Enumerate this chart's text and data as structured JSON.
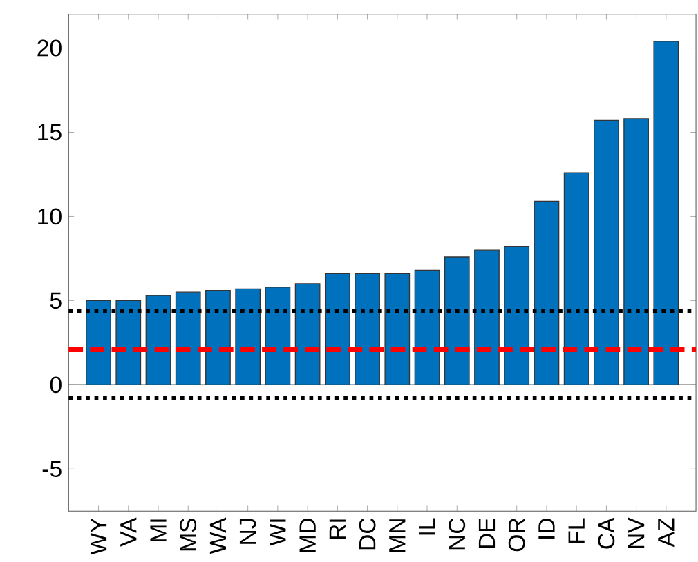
{
  "chart_data": {
    "type": "bar",
    "categories": [
      "WY",
      "VA",
      "MI",
      "MS",
      "WA",
      "NJ",
      "WI",
      "MD",
      "RI",
      "DC",
      "MN",
      "IL",
      "NC",
      "DE",
      "OR",
      "ID",
      "FL",
      "CA",
      "NV",
      "AZ"
    ],
    "values": [
      5.0,
      5.0,
      5.3,
      5.5,
      5.6,
      5.7,
      5.8,
      6.0,
      6.6,
      6.6,
      6.6,
      6.8,
      7.6,
      8.0,
      8.2,
      10.9,
      12.6,
      15.7,
      15.8,
      20.4
    ],
    "color": "#0072bd",
    "ylim": [
      -7.5,
      22
    ],
    "yticks": [
      -5,
      0,
      5,
      10,
      15,
      20
    ],
    "ref_lines": [
      {
        "axis": "y",
        "value": 4.4,
        "color": "#000000",
        "line_style": "dotted"
      },
      {
        "axis": "y",
        "value": 2.1,
        "color": "#ff0000",
        "line_style": "dashed"
      },
      {
        "axis": "y",
        "value": -0.8,
        "color": "#000000",
        "line_style": "dotted"
      }
    ]
  }
}
